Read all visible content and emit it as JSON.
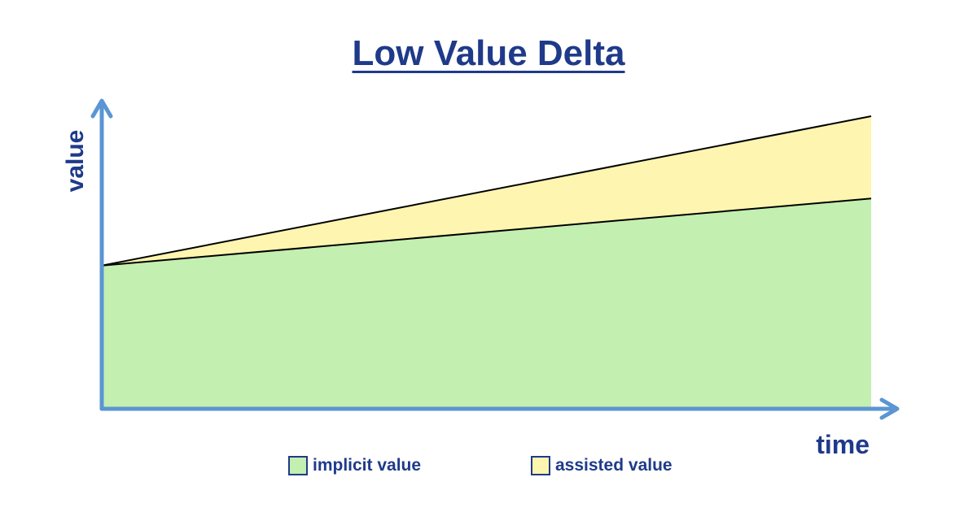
{
  "chart_data": {
    "type": "area",
    "title": "Low Value Delta",
    "xlabel": "time",
    "ylabel": "value",
    "x": [
      0,
      1
    ],
    "xlim": [
      0,
      1
    ],
    "ylim": [
      0,
      1
    ],
    "grid": false,
    "legend_position": "bottom",
    "series": [
      {
        "name": "implicit value",
        "values": [
          0.47,
          0.69
        ],
        "color": "#c3efb0"
      },
      {
        "name": "assisted value",
        "values": [
          0.47,
          0.96
        ],
        "color": "#fdf5b0"
      }
    ],
    "colors": {
      "axis": "#5b95d3",
      "text": "#1f3a8a",
      "boundary_line": "#000000"
    }
  }
}
